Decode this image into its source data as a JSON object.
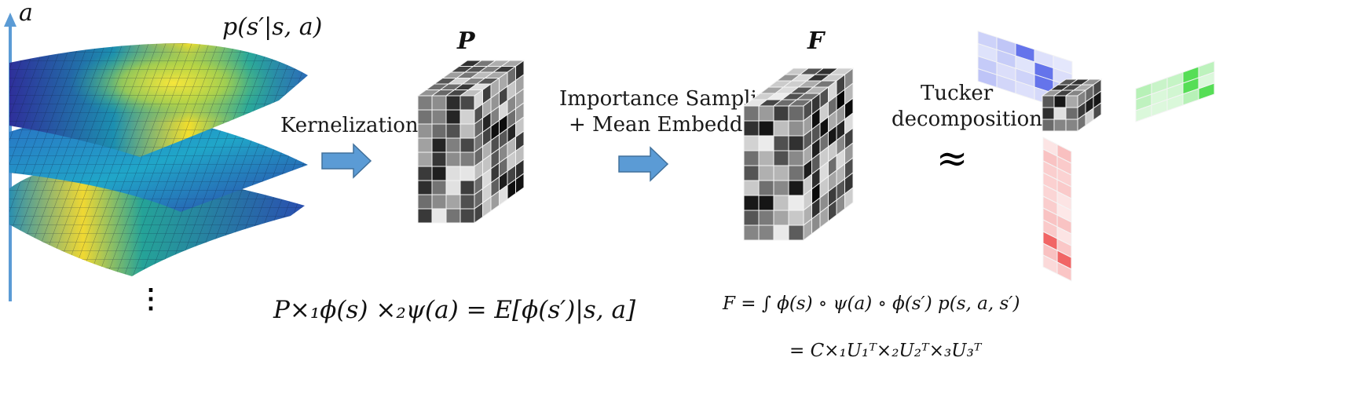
{
  "figure": {
    "axis_label": "a",
    "surface_label": "p(s′|s, a)",
    "ellipsis": "⋮",
    "tensor_P_label": "P",
    "tensor_F_label": "F",
    "step1_label": "Kernelization",
    "step2_line1": "Importance Sampling",
    "step2_line2": "+ Mean Embedding",
    "step3_line1": "Tucker",
    "step3_line2": "decomposition",
    "approx_symbol": "≈",
    "eq_P": "P×₁ϕ(s) ×₂ψ(a) = E[ϕ(s′)|s, a]",
    "eq_F1": "F = ∫ ϕ(s) ∘ ψ(a) ∘ ϕ(s′) p(s, a, s′)",
    "eq_F2": "= C×₁U₁ᵀ×₂U₂ᵀ×₃U₃ᵀ"
  },
  "colors": {
    "axis": "#5b9bd5",
    "arrow_fill": "#5b9bd5",
    "arrow_stroke": "#41719c",
    "surface_low": "#2b2a8f",
    "surface_mid": "#1fa39a",
    "surface_high": "#f4e22a",
    "factor_blue": "#4a5ce8",
    "factor_green": "#38d838",
    "factor_red": "#ee4a4a"
  }
}
